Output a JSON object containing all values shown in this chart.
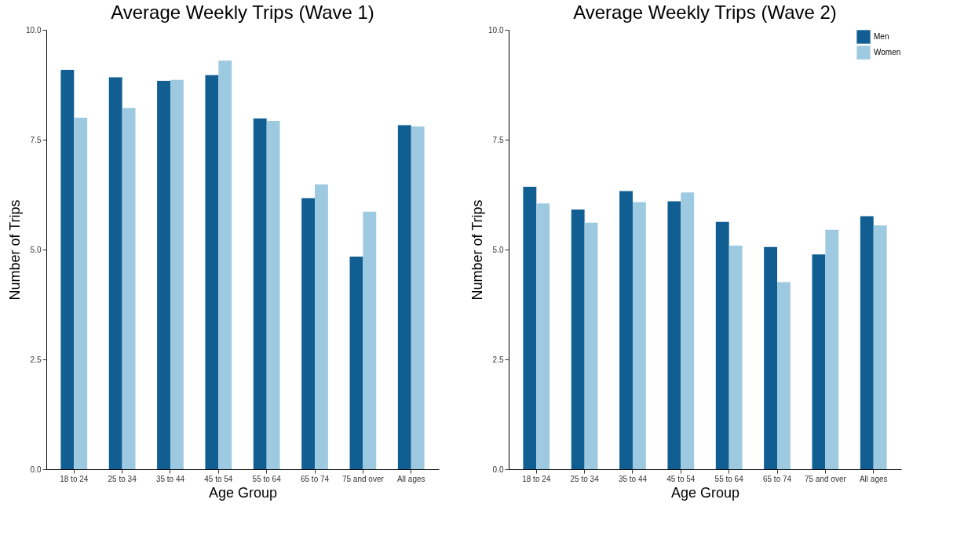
{
  "chart_data": [
    {
      "type": "bar",
      "title": "Average Weekly Trips (Wave 1)",
      "xlabel": "Age Group",
      "ylabel": "Number of Trips",
      "categories": [
        "18 to 24",
        "25 to 34",
        "35 to 44",
        "45 to 54",
        "55 to 64",
        "65 to 74",
        "75 and over",
        "All ages"
      ],
      "series": [
        {
          "color": "#115e92",
          "values": [
            9.09,
            8.92,
            8.84,
            8.97,
            7.98,
            6.17,
            4.84,
            7.83
          ]
        },
        {
          "color": "#9ecae1",
          "values": [
            8.0,
            8.22,
            8.86,
            9.3,
            7.93,
            6.48,
            5.86,
            7.8
          ]
        }
      ],
      "ylim": [
        0,
        10
      ],
      "yticks": [
        {
          "value": 0,
          "label": "0.0"
        },
        {
          "value": 2.5,
          "label": "2.5"
        },
        {
          "value": 5,
          "label": "5.0"
        },
        {
          "value": 7.5,
          "label": "7.5"
        },
        {
          "value": 10,
          "label": "10.0"
        }
      ],
      "grid": false,
      "legend": false
    },
    {
      "type": "bar",
      "title": "Average Weekly Trips (Wave 2)",
      "xlabel": "Age Group",
      "ylabel": "Number of Trips",
      "categories": [
        "18 to 24",
        "25 to 34",
        "35 to 44",
        "45 to 54",
        "55 to 64",
        "65 to 74",
        "75 and over",
        "All ages"
      ],
      "series": [
        {
          "name": "Men",
          "color": "#115e92",
          "values": [
            6.43,
            5.91,
            6.33,
            6.1,
            5.63,
            5.06,
            4.89,
            5.76
          ]
        },
        {
          "name": "Women",
          "color": "#9ecae1",
          "values": [
            6.05,
            5.61,
            6.08,
            6.3,
            5.09,
            4.26,
            5.45,
            5.55
          ]
        }
      ],
      "ylim": [
        0,
        10
      ],
      "yticks": [
        {
          "value": 0,
          "label": "0.0"
        },
        {
          "value": 2.5,
          "label": "2.5"
        },
        {
          "value": 5,
          "label": "5.0"
        },
        {
          "value": 7.5,
          "label": "7.5"
        },
        {
          "value": 10,
          "label": "10.0"
        }
      ],
      "grid": false,
      "legend": "top right"
    }
  ]
}
